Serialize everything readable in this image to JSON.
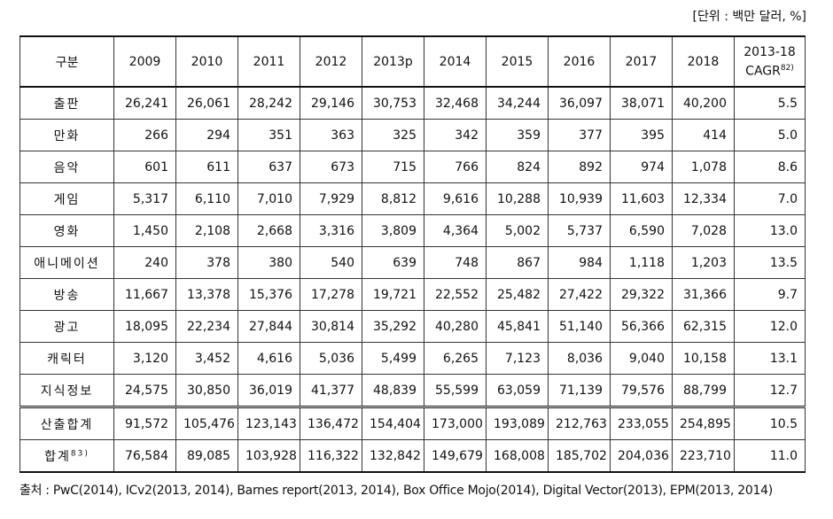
{
  "unit": "[단위 : 백만 달러, %]",
  "table": {
    "header": [
      "구분",
      "2009",
      "2010",
      "2011",
      "2012",
      "2013p",
      "2014",
      "2015",
      "2016",
      "2017",
      "2018"
    ],
    "cagr_header": {
      "line1": "2013-18",
      "line2": "CAGR",
      "note": "82)"
    },
    "rows": [
      {
        "label": "출판",
        "values": [
          "26,241",
          "26,061",
          "28,242",
          "29,146",
          "30,753",
          "32,468",
          "34,244",
          "36,097",
          "38,071",
          "40,200",
          "5.5"
        ]
      },
      {
        "label": "만화",
        "values": [
          "266",
          "294",
          "351",
          "363",
          "325",
          "342",
          "359",
          "377",
          "395",
          "414",
          "5.0"
        ]
      },
      {
        "label": "음악",
        "values": [
          "601",
          "611",
          "637",
          "673",
          "715",
          "766",
          "824",
          "892",
          "974",
          "1,078",
          "8.6"
        ]
      },
      {
        "label": "게임",
        "values": [
          "5,317",
          "6,110",
          "7,010",
          "7,929",
          "8,812",
          "9,616",
          "10,288",
          "10,939",
          "11,603",
          "12,334",
          "7.0"
        ]
      },
      {
        "label": "영화",
        "values": [
          "1,450",
          "2,108",
          "2,668",
          "3,316",
          "3,809",
          "4,364",
          "5,002",
          "5,737",
          "6,590",
          "7,028",
          "13.0"
        ]
      },
      {
        "label": "애니메이션",
        "values": [
          "240",
          "378",
          "380",
          "540",
          "639",
          "748",
          "867",
          "984",
          "1,118",
          "1,203",
          "13.5"
        ]
      },
      {
        "label": "방송",
        "values": [
          "11,667",
          "13,378",
          "15,376",
          "17,278",
          "19,721",
          "22,552",
          "25,482",
          "27,422",
          "29,322",
          "31,366",
          "9.7"
        ]
      },
      {
        "label": "광고",
        "values": [
          "18,095",
          "22,234",
          "27,844",
          "30,814",
          "35,292",
          "40,280",
          "45,841",
          "51,140",
          "56,366",
          "62,315",
          "12.0"
        ]
      },
      {
        "label": "캐릭터",
        "values": [
          "3,120",
          "3,452",
          "4,616",
          "5,036",
          "5,499",
          "6,265",
          "7,123",
          "8,036",
          "9,040",
          "10,158",
          "13.1"
        ]
      },
      {
        "label": "지식정보",
        "values": [
          "24,575",
          "30,850",
          "36,019",
          "41,377",
          "48,839",
          "55,599",
          "63,059",
          "71,139",
          "79,576",
          "88,799",
          "12.7"
        ]
      },
      {
        "label": "산출합계",
        "values": [
          "91,572",
          "105,476",
          "123,143",
          "136,472",
          "154,404",
          "173,000",
          "193,089",
          "212,763",
          "233,055",
          "254,895",
          "10.5"
        ]
      },
      {
        "label": "합계",
        "note": "83)",
        "values": [
          "76,584",
          "89,085",
          "103,928",
          "116,322",
          "132,842",
          "149,679",
          "168,008",
          "185,702",
          "204,036",
          "223,710",
          "11.0"
        ]
      }
    ]
  },
  "source": "출처 : PwC(2014), ICv2(2013, 2014), Barnes report(2013, 2014), Box Office Mojo(2014), Digital Vector(2013), EPM(2013, 2014)"
}
